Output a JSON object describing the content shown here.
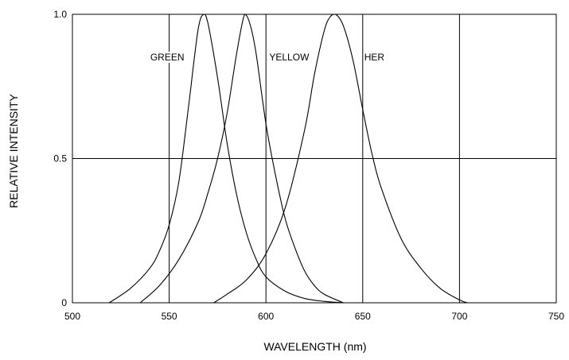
{
  "chart_data": {
    "type": "line",
    "title": "",
    "xlabel": "WAVELENGTH (nm)",
    "ylabel": "RELATIVE INTENSITY",
    "xlim": [
      500,
      750
    ],
    "ylim": [
      0,
      1.0
    ],
    "x_ticks": [
      500,
      550,
      600,
      650,
      700,
      750
    ],
    "x_tick_labels": [
      "500",
      "550",
      "600",
      "650",
      "700",
      "750"
    ],
    "y_ticks": [
      0,
      0.5,
      1.0
    ],
    "y_tick_labels": [
      "0",
      "0.5",
      "1.0"
    ],
    "grid": true,
    "series": [
      {
        "name": "GREEN",
        "x": [
          519,
          530,
          540,
          545,
          550,
          555,
          560,
          565,
          568,
          570,
          575,
          580,
          585,
          590,
          595,
          600,
          610,
          620,
          630,
          640
        ],
        "y": [
          0.0,
          0.05,
          0.12,
          0.18,
          0.27,
          0.42,
          0.68,
          0.95,
          1.0,
          0.97,
          0.78,
          0.55,
          0.37,
          0.24,
          0.15,
          0.09,
          0.04,
          0.015,
          0.005,
          0.0
        ]
      },
      {
        "name": "YELLOW",
        "x": [
          535,
          545,
          555,
          565,
          570,
          575,
          580,
          585,
          589,
          592,
          595,
          600,
          605,
          610,
          615,
          620,
          625,
          630,
          640
        ],
        "y": [
          0.0,
          0.06,
          0.15,
          0.28,
          0.38,
          0.5,
          0.66,
          0.87,
          1.0,
          0.96,
          0.86,
          0.62,
          0.44,
          0.29,
          0.19,
          0.11,
          0.06,
          0.03,
          0.0
        ]
      },
      {
        "name": "HER",
        "x": [
          573,
          580,
          590,
          600,
          610,
          620,
          625,
          630,
          633,
          636,
          640,
          645,
          650,
          655,
          660,
          670,
          680,
          690,
          700,
          704
        ],
        "y": [
          0.0,
          0.03,
          0.08,
          0.17,
          0.33,
          0.6,
          0.79,
          0.94,
          0.99,
          1.0,
          0.96,
          0.84,
          0.67,
          0.51,
          0.39,
          0.22,
          0.12,
          0.05,
          0.01,
          0.0
        ]
      }
    ],
    "labels": [
      {
        "text": "GREEN",
        "x": 549,
        "y": 0.84
      },
      {
        "text": "YELLOW",
        "x": 612,
        "y": 0.84
      },
      {
        "text": "HER",
        "x": 656,
        "y": 0.84
      }
    ],
    "colors": {
      "line": "#000000",
      "grid": "#000000",
      "background": "#ffffff"
    }
  }
}
